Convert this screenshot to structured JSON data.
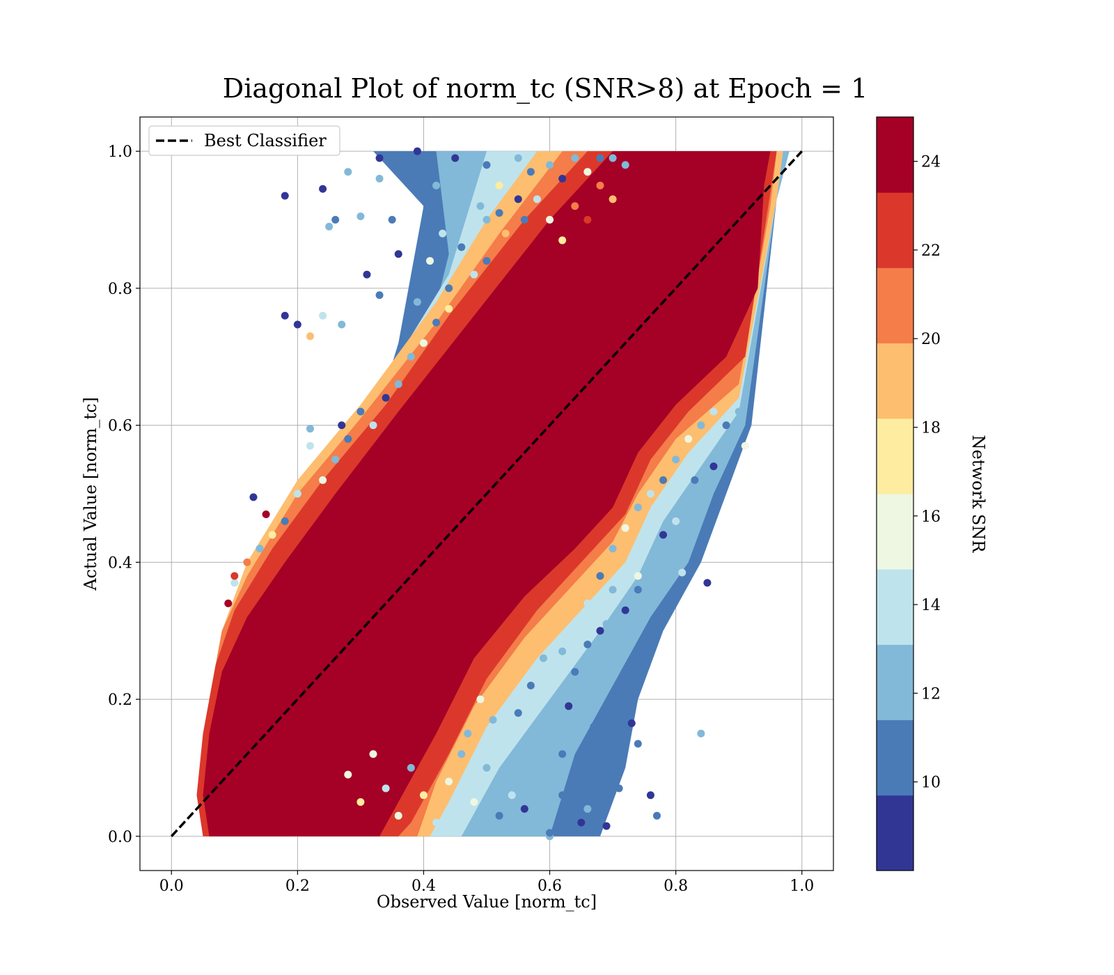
{
  "chart_data": {
    "type": "scatter",
    "title": "Diagonal Plot of norm_tc (SNR>8) at Epoch = 1",
    "xlabel": "Observed Value [norm_tc]",
    "ylabel": "Actual Value [norm_tc]",
    "xlim": [
      -0.05,
      1.05
    ],
    "ylim": [
      -0.05,
      1.05
    ],
    "xticks": [
      "0.0",
      "0.2",
      "0.4",
      "0.6",
      "0.8",
      "1.0"
    ],
    "yticks": [
      "0.0",
      "0.2",
      "0.4",
      "0.6",
      "0.8",
      "1.0"
    ],
    "grid": true,
    "legend": {
      "position": "top-left",
      "entries": [
        "Best Classifier"
      ]
    },
    "reference_line": {
      "name": "Best Classifier",
      "x": [
        0,
        1
      ],
      "y": [
        0,
        1
      ],
      "style": "dashed",
      "color": "#000000"
    },
    "colorbar": {
      "label": "Network SNR",
      "range": [
        8,
        25
      ],
      "ticks": [
        "10",
        "12",
        "14",
        "16",
        "18",
        "20",
        "22",
        "24"
      ],
      "bins": [
        {
          "from": 8,
          "to": 9.7,
          "color": "#313695"
        },
        {
          "from": 9.7,
          "to": 11.4,
          "color": "#4a7bb7"
        },
        {
          "from": 11.4,
          "to": 13.1,
          "color": "#82b9d8"
        },
        {
          "from": 13.1,
          "to": 14.8,
          "color": "#bfe3ec"
        },
        {
          "from": 14.8,
          "to": 16.5,
          "color": "#edf7e2"
        },
        {
          "from": 16.5,
          "to": 18.2,
          "color": "#feeca0"
        },
        {
          "from": 18.2,
          "to": 19.9,
          "color": "#fdbe70"
        },
        {
          "from": 19.9,
          "to": 21.6,
          "color": "#f47d4a"
        },
        {
          "from": 21.6,
          "to": 23.3,
          "color": "#db382b"
        },
        {
          "from": 23.3,
          "to": 25,
          "color": "#a50026"
        }
      ]
    },
    "scatter_points": [
      [
        0.18,
        0.935,
        9.0
      ],
      [
        0.24,
        0.945,
        9.0
      ],
      [
        0.33,
        0.99,
        9.0
      ],
      [
        0.39,
        1.0,
        9.0
      ],
      [
        0.18,
        0.76,
        9.0
      ],
      [
        0.2,
        0.747,
        9.0
      ],
      [
        0.33,
        0.96,
        12.5
      ],
      [
        0.28,
        0.97,
        12.5
      ],
      [
        0.25,
        0.89,
        12.0
      ],
      [
        0.26,
        0.9,
        10.5
      ],
      [
        0.3,
        0.905,
        13.0
      ],
      [
        0.31,
        0.82,
        9.5
      ],
      [
        0.33,
        0.79,
        10.0
      ],
      [
        0.36,
        0.85,
        9.0
      ],
      [
        0.35,
        0.9,
        11.0
      ],
      [
        0.24,
        0.76,
        13.5
      ],
      [
        0.22,
        0.73,
        19.0
      ],
      [
        0.27,
        0.747,
        11.5
      ],
      [
        0.27,
        0.6,
        9.0
      ],
      [
        0.22,
        0.595,
        12.0
      ],
      [
        0.22,
        0.57,
        14.0
      ],
      [
        0.13,
        0.495,
        9.0
      ],
      [
        0.15,
        0.47,
        24.0
      ],
      [
        0.1,
        0.37,
        14.0
      ],
      [
        0.4,
        0.93,
        10.0
      ],
      [
        0.42,
        0.95,
        12.0
      ],
      [
        0.45,
        0.99,
        9.0
      ],
      [
        0.47,
        0.97,
        13.0
      ],
      [
        0.5,
        0.98,
        11.0
      ],
      [
        0.43,
        0.88,
        14.0
      ],
      [
        0.46,
        0.86,
        10.0
      ],
      [
        0.5,
        0.9,
        12.0
      ],
      [
        0.52,
        0.95,
        17.0
      ],
      [
        0.55,
        0.99,
        13.0
      ],
      [
        0.57,
        0.97,
        10.0
      ],
      [
        0.6,
        0.98,
        12.0
      ],
      [
        0.44,
        0.8,
        11.0
      ],
      [
        0.48,
        0.82,
        14.0
      ],
      [
        0.5,
        0.84,
        10.0
      ],
      [
        0.53,
        0.88,
        19.0
      ],
      [
        0.56,
        0.9,
        11.0
      ],
      [
        0.58,
        0.93,
        14.0
      ],
      [
        0.62,
        0.96,
        9.0
      ],
      [
        0.64,
        0.99,
        12.0
      ],
      [
        0.66,
        0.97,
        15.0
      ],
      [
        0.68,
        0.99,
        11.0
      ],
      [
        0.7,
        0.99,
        13.0
      ],
      [
        0.72,
        0.98,
        12.0
      ],
      [
        0.6,
        0.9,
        16.0
      ],
      [
        0.62,
        0.87,
        18.0
      ],
      [
        0.64,
        0.92,
        20.0
      ],
      [
        0.66,
        0.9,
        22.0
      ],
      [
        0.68,
        0.95,
        21.0
      ],
      [
        0.7,
        0.93,
        19.0
      ],
      [
        0.38,
        0.7,
        12.0
      ],
      [
        0.4,
        0.72,
        15.0
      ],
      [
        0.42,
        0.75,
        10.0
      ],
      [
        0.44,
        0.77,
        18.0
      ],
      [
        0.36,
        0.66,
        13.0
      ],
      [
        0.34,
        0.64,
        9.0
      ],
      [
        0.3,
        0.62,
        11.0
      ],
      [
        0.32,
        0.6,
        14.0
      ],
      [
        0.28,
        0.58,
        10.0
      ],
      [
        0.26,
        0.55,
        12.0
      ],
      [
        0.24,
        0.52,
        16.0
      ],
      [
        0.2,
        0.5,
        14.0
      ],
      [
        0.18,
        0.46,
        11.0
      ],
      [
        0.16,
        0.44,
        17.0
      ],
      [
        0.14,
        0.42,
        13.0
      ],
      [
        0.12,
        0.4,
        20.0
      ],
      [
        0.1,
        0.38,
        22.0
      ],
      [
        0.09,
        0.34,
        24.0
      ],
      [
        0.55,
        0.93,
        9.0
      ],
      [
        0.52,
        0.91,
        10.0
      ],
      [
        0.49,
        0.92,
        13.0
      ],
      [
        0.46,
        0.91,
        12.0
      ],
      [
        0.41,
        0.84,
        16.0
      ],
      [
        0.39,
        0.78,
        13.0
      ],
      [
        0.85,
        0.37,
        9.0
      ],
      [
        0.81,
        0.385,
        14.0
      ],
      [
        0.84,
        0.15,
        12.0
      ],
      [
        0.76,
        0.06,
        9.0
      ],
      [
        0.77,
        0.03,
        10.0
      ],
      [
        0.73,
        0.165,
        9.0
      ],
      [
        0.71,
        0.07,
        11.0
      ],
      [
        0.74,
        0.135,
        10.0
      ],
      [
        0.69,
        0.015,
        9.0
      ],
      [
        0.66,
        0.04,
        12.0
      ],
      [
        0.67,
        0.16,
        10.0
      ],
      [
        0.7,
        0.245,
        13.0
      ],
      [
        0.68,
        0.3,
        9.0
      ],
      [
        0.72,
        0.33,
        9.0
      ],
      [
        0.74,
        0.36,
        10.0
      ],
      [
        0.69,
        0.31,
        12.0
      ],
      [
        0.64,
        0.24,
        11.0
      ],
      [
        0.63,
        0.19,
        9.0
      ],
      [
        0.6,
        0.15,
        13.0
      ],
      [
        0.62,
        0.12,
        10.0
      ],
      [
        0.58,
        0.08,
        12.0
      ],
      [
        0.56,
        0.04,
        9.0
      ],
      [
        0.54,
        0.06,
        14.0
      ],
      [
        0.52,
        0.03,
        11.0
      ],
      [
        0.5,
        0.1,
        13.0
      ],
      [
        0.48,
        0.05,
        15.0
      ],
      [
        0.46,
        0.12,
        12.0
      ],
      [
        0.44,
        0.08,
        16.0
      ],
      [
        0.42,
        0.02,
        14.0
      ],
      [
        0.4,
        0.06,
        17.0
      ],
      [
        0.38,
        0.1,
        13.0
      ],
      [
        0.36,
        0.03,
        15.0
      ],
      [
        0.34,
        0.07,
        14.0
      ],
      [
        0.32,
        0.12,
        16.0
      ],
      [
        0.3,
        0.05,
        18.0
      ],
      [
        0.28,
        0.09,
        15.0
      ],
      [
        0.55,
        0.18,
        11.0
      ],
      [
        0.57,
        0.22,
        10.0
      ],
      [
        0.59,
        0.26,
        12.0
      ],
      [
        0.53,
        0.14,
        14.0
      ],
      [
        0.51,
        0.17,
        12.0
      ],
      [
        0.49,
        0.2,
        15.0
      ],
      [
        0.6,
        0.0,
        13.0
      ],
      [
        0.6,
        0.005,
        10.0
      ],
      [
        0.65,
        0.02,
        9.0
      ],
      [
        0.62,
        0.06,
        11.0
      ],
      [
        0.56,
        0.11,
        12.0
      ],
      [
        0.47,
        0.15,
        13.0
      ],
      [
        0.66,
        0.34,
        14.0
      ],
      [
        0.68,
        0.38,
        11.0
      ],
      [
        0.7,
        0.42,
        13.0
      ],
      [
        0.72,
        0.45,
        15.0
      ],
      [
        0.74,
        0.48,
        12.0
      ],
      [
        0.76,
        0.5,
        14.0
      ],
      [
        0.78,
        0.52,
        11.0
      ],
      [
        0.8,
        0.55,
        13.0
      ],
      [
        0.82,
        0.58,
        16.0
      ],
      [
        0.84,
        0.6,
        12.0
      ],
      [
        0.86,
        0.62,
        14.0
      ],
      [
        0.88,
        0.6,
        10.0
      ],
      [
        0.9,
        0.62,
        13.0
      ],
      [
        0.91,
        0.57,
        16.0
      ],
      [
        0.86,
        0.54,
        9.0
      ],
      [
        0.83,
        0.52,
        11.0
      ],
      [
        0.8,
        0.46,
        14.0
      ],
      [
        0.78,
        0.44,
        9.0
      ],
      [
        0.76,
        0.4,
        12.0
      ],
      [
        0.74,
        0.38,
        15.0
      ],
      [
        0.7,
        0.36,
        13.0
      ],
      [
        0.66,
        0.28,
        11.0
      ],
      [
        0.64,
        0.3,
        14.0
      ],
      [
        0.62,
        0.27,
        12.0
      ]
    ]
  }
}
